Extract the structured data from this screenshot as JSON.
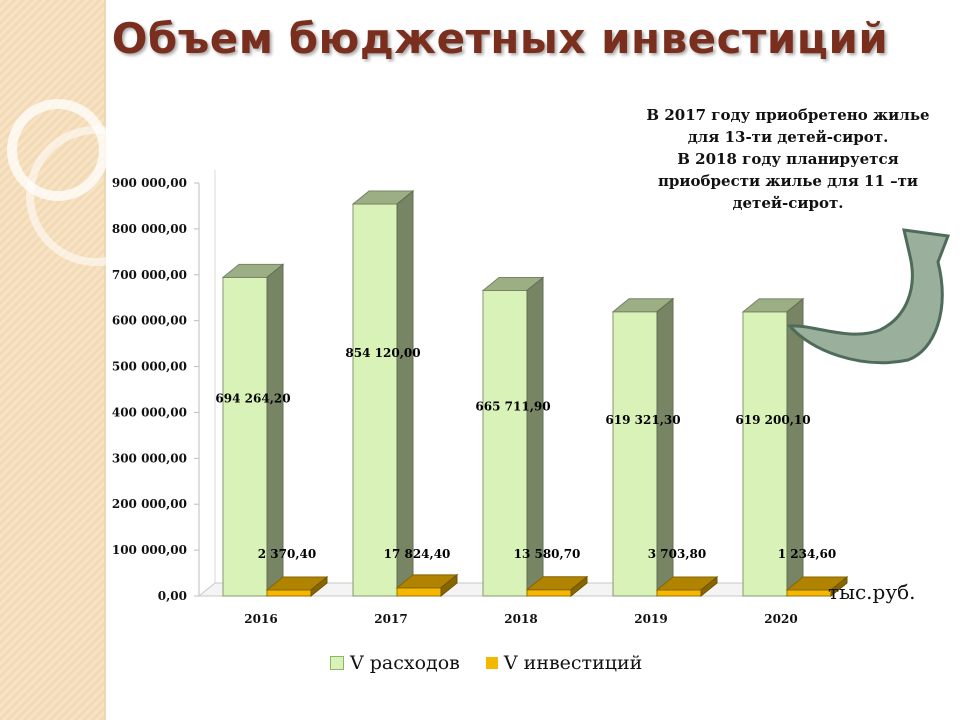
{
  "title": "Объем бюджетных инвестиций",
  "note_lines": [
    "В 2017 году приобретено жилье",
    "для 13-ти детей-сирот.",
    "В 2018 году планируется",
    "приобрести жилье для 11 –ти",
    "детей-сирот."
  ],
  "unit_label": "тыс.руб.",
  "colors": {
    "title": "#7a2f1e",
    "expenses_series": "#d9f2b8",
    "investments_series": "#f5b800",
    "background_band": "#f7e3c4",
    "arrow_fill": "#9aaf9c"
  },
  "icons": {
    "curved_arrow": "curved-arrow-icon"
  },
  "chart_data": {
    "type": "bar",
    "categories": [
      "2016",
      "2017",
      "2018",
      "2019",
      "2020"
    ],
    "ylim": [
      0,
      900000
    ],
    "y_ticks": [
      "0,00",
      "100 000,00",
      "200 000,00",
      "300 000,00",
      "400 000,00",
      "500 000,00",
      "600 000,00",
      "700 000,00",
      "800 000,00",
      "900 000,00"
    ],
    "grid": false,
    "legend_position": "bottom",
    "series": [
      {
        "name": "V расходов",
        "color": "#d9f2b8",
        "values": [
          694264.2,
          854120.0,
          665711.9,
          619321.3,
          619200.1
        ],
        "labels": [
          "694 264,20",
          "854 120,00",
          "665 711,90",
          "619 321,30",
          "619 200,10"
        ]
      },
      {
        "name": "V инвестиций",
        "color": "#f5b800",
        "values": [
          2370.4,
          17824.4,
          13580.7,
          3703.8,
          1234.6
        ],
        "labels": [
          "2 370,40",
          "17 824,40",
          "13 580,70",
          "3 703,80",
          "1 234,60"
        ]
      }
    ]
  }
}
